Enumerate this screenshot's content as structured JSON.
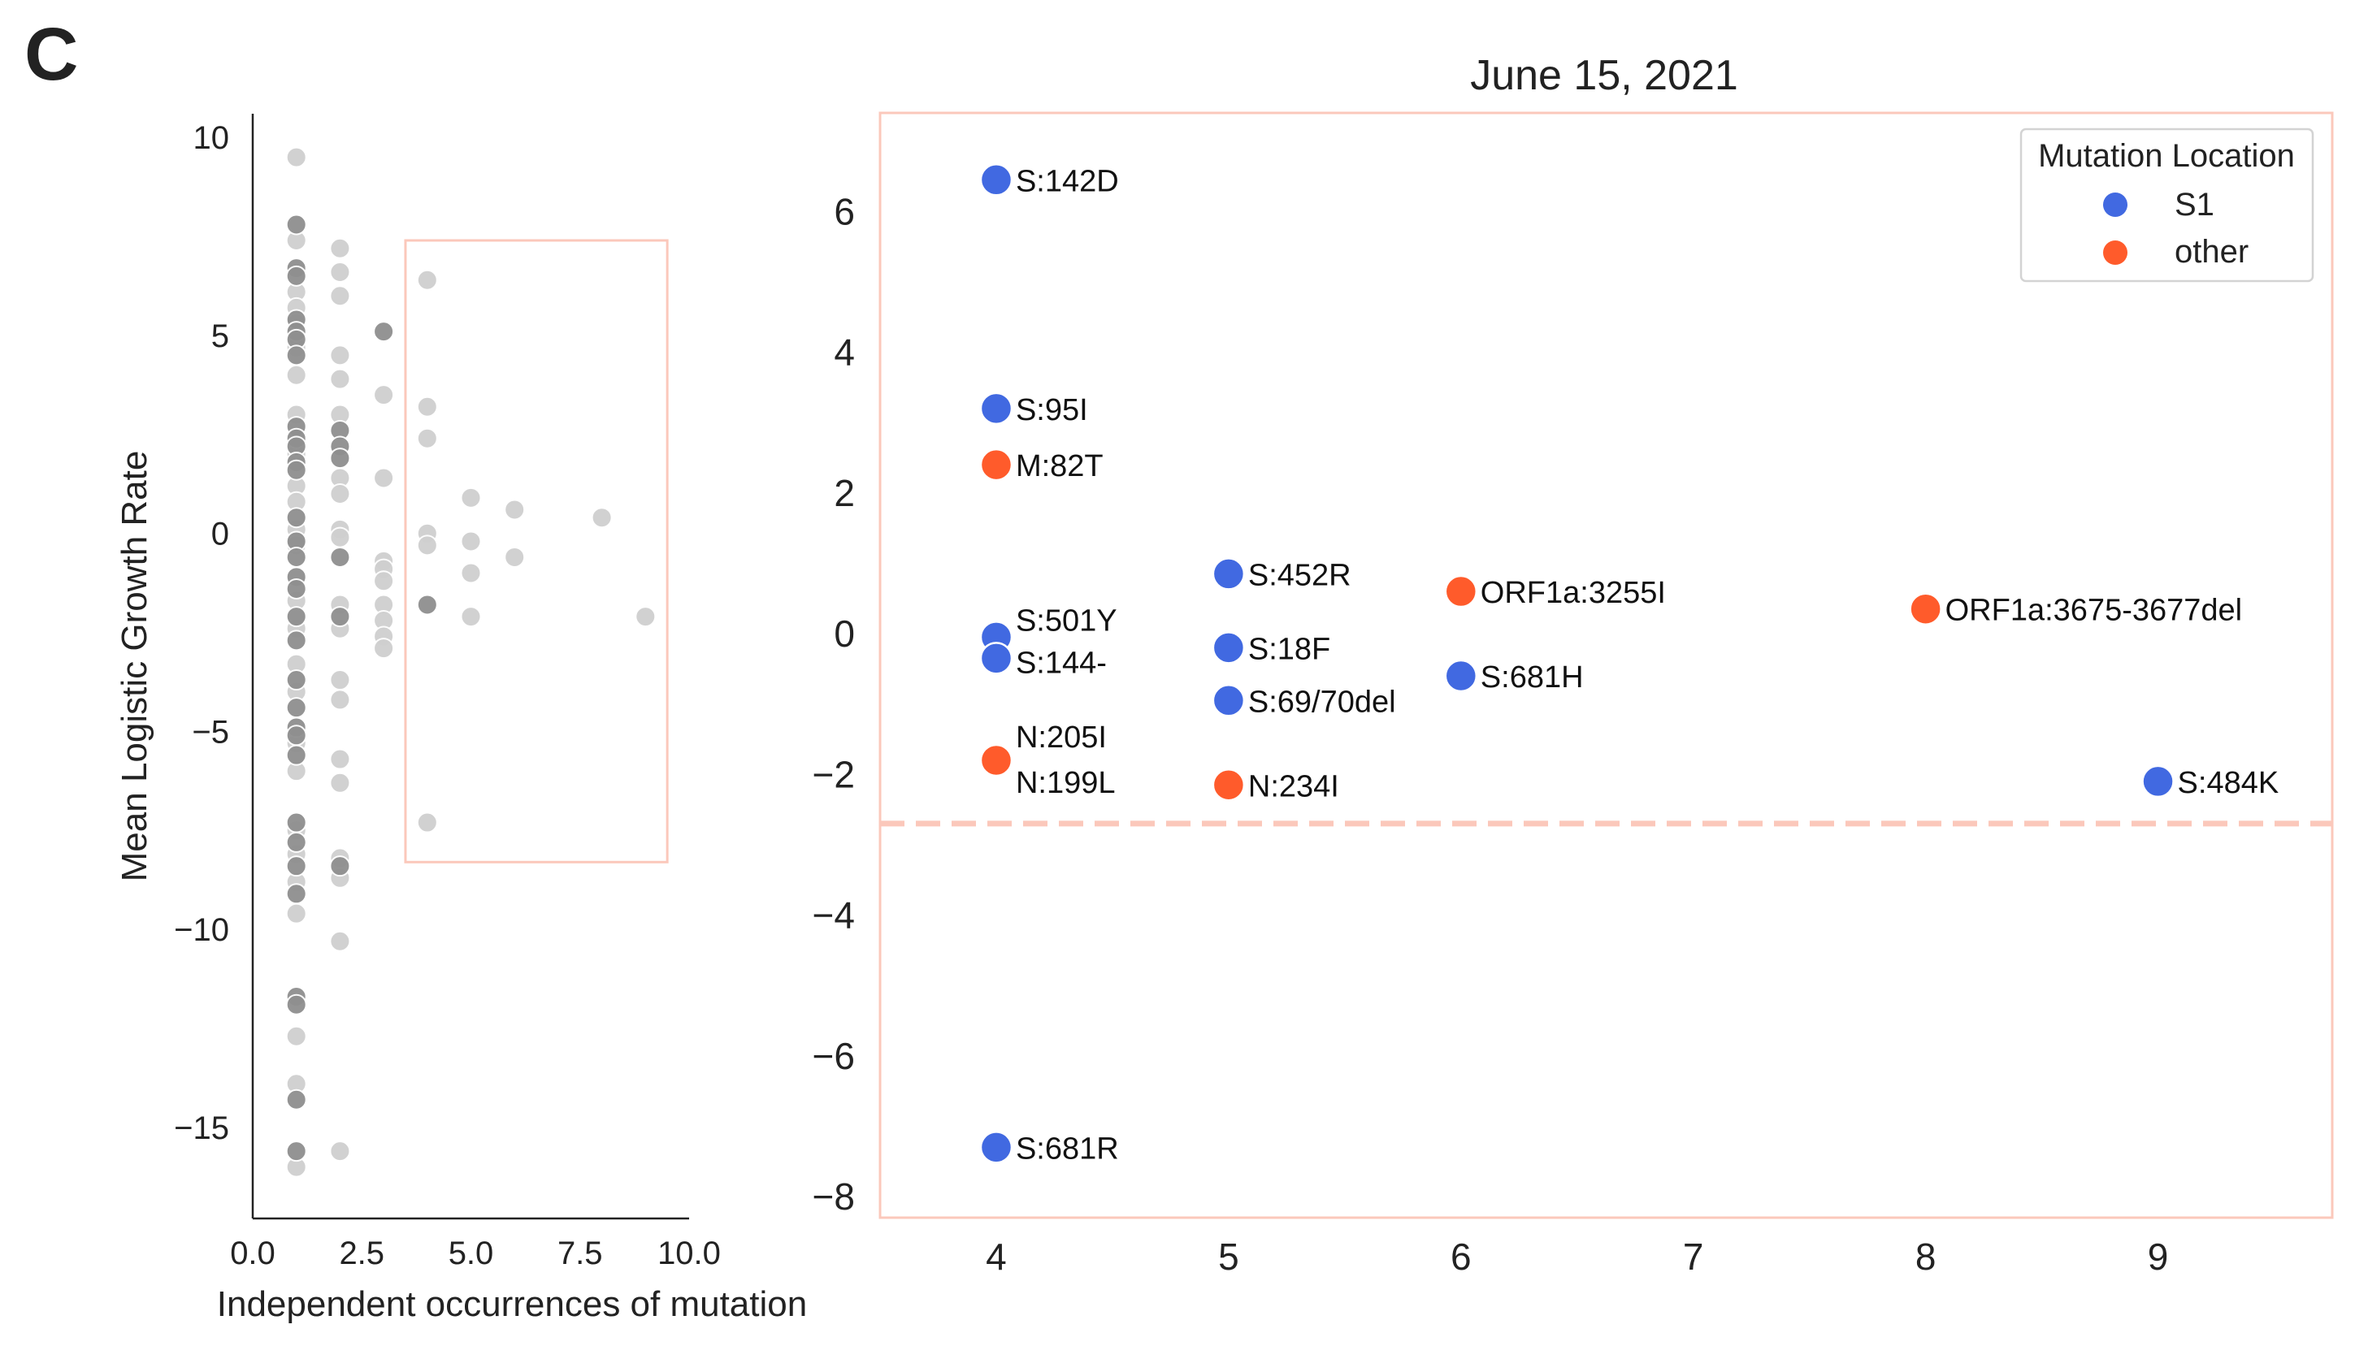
{
  "panel_label": "C",
  "colors": {
    "dark_gray": "#8f8f8f",
    "light_gray": "#cfcfcf",
    "highlight_box": "#fbc8bb",
    "threshold_line": "#fbc8bb",
    "s1": "#4169e1",
    "other": "#ff5b2b"
  },
  "chart_data": [
    {
      "type": "scatter",
      "title": "",
      "xlabel": "Independent occurrences of mutation",
      "ylabel": "Mean Logistic Growth Rate",
      "xlim": [
        0,
        10
      ],
      "ylim": [
        -17.3,
        10.6
      ],
      "x_ticks": [
        0,
        2.5,
        5,
        7.5,
        10
      ],
      "x_tick_labels": [
        "0.0",
        "2.5",
        "5.0",
        "7.5",
        "10.0"
      ],
      "y_ticks": [
        10,
        5,
        0,
        -5,
        -10,
        -15
      ],
      "y_tick_labels": [
        "10",
        "5",
        "0",
        "−5",
        "−10",
        "−15"
      ],
      "grid": false,
      "highlight_region": {
        "x": [
          3.5,
          9.5
        ],
        "y": [
          -8.3,
          7.4
        ]
      },
      "series": [
        {
          "color_key": "dark_gray",
          "points": [
            [
              1,
              7.8
            ],
            [
              1,
              6.7
            ],
            [
              1,
              6.5
            ],
            [
              1,
              5.4
            ],
            [
              1,
              5.1
            ],
            [
              1,
              4.9
            ],
            [
              1,
              4.5
            ],
            [
              1,
              2.7
            ],
            [
              1,
              2.4
            ],
            [
              1,
              2.2
            ],
            [
              1,
              1.8
            ],
            [
              1,
              1.6
            ],
            [
              1,
              0.4
            ],
            [
              1,
              -0.2
            ],
            [
              1,
              -0.6
            ],
            [
              1,
              -1.1
            ],
            [
              1,
              -1.4
            ],
            [
              1,
              -2.1
            ],
            [
              1,
              -2.7
            ],
            [
              1,
              -3.7
            ],
            [
              1,
              -4.4
            ],
            [
              1,
              -4.9
            ],
            [
              1,
              -5.1
            ],
            [
              1,
              -5.6
            ],
            [
              1,
              -7.3
            ],
            [
              1,
              -7.8
            ],
            [
              1,
              -8.4
            ],
            [
              1,
              -9.1
            ],
            [
              1,
              -11.7
            ],
            [
              1,
              -11.9
            ],
            [
              1,
              -14.3
            ],
            [
              1,
              -15.6
            ],
            [
              2,
              2.6
            ],
            [
              2,
              2.2
            ],
            [
              2,
              1.9
            ],
            [
              2,
              -0.6
            ],
            [
              2,
              -2.1
            ],
            [
              2,
              -8.4
            ],
            [
              3,
              5.1
            ],
            [
              4,
              -1.8
            ]
          ]
        },
        {
          "color_key": "light_gray",
          "points": [
            [
              1,
              9.5
            ],
            [
              1,
              7.4
            ],
            [
              1,
              6.1
            ],
            [
              1,
              5.7
            ],
            [
              1,
              5.3
            ],
            [
              1,
              4.7
            ],
            [
              1,
              4.0
            ],
            [
              1,
              3.0
            ],
            [
              1,
              2.0
            ],
            [
              1,
              1.2
            ],
            [
              1,
              0.8
            ],
            [
              1,
              0.1
            ],
            [
              1,
              -0.3
            ],
            [
              1,
              -1.7
            ],
            [
              1,
              -2.4
            ],
            [
              1,
              -3.3
            ],
            [
              1,
              -4.0
            ],
            [
              1,
              -5.3
            ],
            [
              1,
              -6.0
            ],
            [
              1,
              -7.5
            ],
            [
              1,
              -8.1
            ],
            [
              1,
              -8.8
            ],
            [
              1,
              -9.6
            ],
            [
              1,
              -12.7
            ],
            [
              1,
              -13.9
            ],
            [
              1,
              -16.0
            ],
            [
              2,
              7.2
            ],
            [
              2,
              6.6
            ],
            [
              2,
              6.0
            ],
            [
              2,
              4.5
            ],
            [
              2,
              3.9
            ],
            [
              2,
              3.0
            ],
            [
              2,
              1.4
            ],
            [
              2,
              1.0
            ],
            [
              2,
              0.1
            ],
            [
              2,
              -0.1
            ],
            [
              2,
              -1.8
            ],
            [
              2,
              -2.4
            ],
            [
              2,
              -3.7
            ],
            [
              2,
              -4.2
            ],
            [
              2,
              -5.7
            ],
            [
              2,
              -6.3
            ],
            [
              2,
              -8.2
            ],
            [
              2,
              -8.7
            ],
            [
              2,
              -10.3
            ],
            [
              2,
              -15.6
            ],
            [
              3,
              3.5
            ],
            [
              3,
              1.4
            ],
            [
              3,
              -0.7
            ],
            [
              3,
              -0.9
            ],
            [
              3,
              -1.2
            ],
            [
              3,
              -1.8
            ],
            [
              3,
              -2.2
            ],
            [
              3,
              -2.6
            ],
            [
              3,
              -2.9
            ],
            [
              4,
              6.4
            ],
            [
              4,
              3.2
            ],
            [
              4,
              2.4
            ],
            [
              4,
              0
            ],
            [
              4,
              -0.3
            ],
            [
              4,
              -7.3
            ],
            [
              5,
              0.9
            ],
            [
              5,
              -0.2
            ],
            [
              5,
              -1.0
            ],
            [
              5,
              -2.1
            ],
            [
              6,
              0.6
            ],
            [
              6,
              -0.6
            ],
            [
              8,
              0.4
            ],
            [
              9,
              -2.1
            ]
          ]
        }
      ]
    },
    {
      "type": "scatter",
      "title": "June 15, 2021",
      "xlabel": "",
      "ylabel": "",
      "xlim": [
        3.5,
        9.75
      ],
      "ylim": [
        -8.3,
        7.4
      ],
      "x_ticks": [
        4,
        5,
        6,
        7,
        8,
        9
      ],
      "x_tick_labels": [
        "4",
        "5",
        "6",
        "7",
        "8",
        "9"
      ],
      "y_ticks": [
        6,
        4,
        2,
        0,
        -2,
        -4,
        -6,
        -8
      ],
      "y_tick_labels": [
        "6",
        "4",
        "2",
        "0",
        "−2",
        "−4",
        "−6",
        "−8"
      ],
      "grid": false,
      "threshold_y": -2.7,
      "legend": {
        "title": "Mutation Location",
        "position": "top-right",
        "entries": [
          {
            "label": "S1",
            "color_key": "s1"
          },
          {
            "label": "other",
            "color_key": "other"
          }
        ]
      },
      "points": [
        {
          "x": 4,
          "y": 6.45,
          "label": "S:142D",
          "location": "s1"
        },
        {
          "x": 4,
          "y": 3.2,
          "label": "S:95I",
          "location": "s1"
        },
        {
          "x": 4,
          "y": 2.4,
          "label": "M:82T",
          "location": "other"
        },
        {
          "x": 4,
          "y": -0.05,
          "label": "S:501Y",
          "location": "s1"
        },
        {
          "x": 4,
          "y": -0.35,
          "label": "S:144-",
          "location": "s1"
        },
        {
          "x": 4,
          "y": -1.8,
          "label": "N:205I",
          "location": "other"
        },
        {
          "x": 4,
          "y": -1.8,
          "label": "N:199L",
          "location": "other"
        },
        {
          "x": 4,
          "y": -7.3,
          "label": "S:681R",
          "location": "s1"
        },
        {
          "x": 5,
          "y": 0.85,
          "label": "S:452R",
          "location": "s1"
        },
        {
          "x": 5,
          "y": -0.2,
          "label": "S:18F",
          "location": "s1"
        },
        {
          "x": 5,
          "y": -0.95,
          "label": "S:69/70del",
          "location": "s1"
        },
        {
          "x": 5,
          "y": -2.15,
          "label": "N:234I",
          "location": "other"
        },
        {
          "x": 6,
          "y": 0.6,
          "label": "ORF1a:3255I",
          "location": "other"
        },
        {
          "x": 6,
          "y": -0.6,
          "label": "S:681H",
          "location": "s1"
        },
        {
          "x": 8,
          "y": 0.35,
          "label": "ORF1a:3675-3677del",
          "location": "other"
        },
        {
          "x": 9,
          "y": -2.1,
          "label": "S:484K",
          "location": "s1"
        }
      ]
    }
  ]
}
